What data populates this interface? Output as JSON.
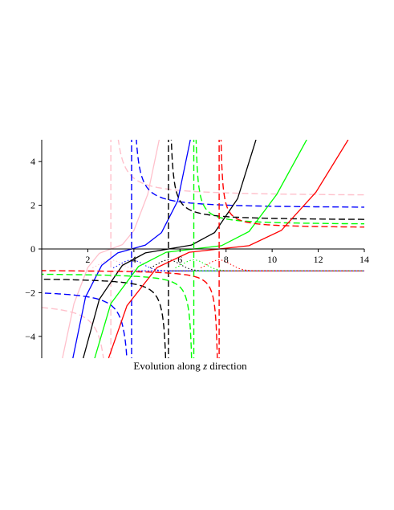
{
  "chart_data": {
    "type": "line",
    "title": "",
    "xlabel_prefix": "Evolution along ",
    "xlabel_var": "z",
    "xlabel_suffix": " direction",
    "xlim": [
      0,
      14
    ],
    "ylim": [
      -5,
      5
    ],
    "xticks": [
      2,
      4,
      6,
      8,
      10,
      12,
      14
    ],
    "yticks": [
      -4,
      -2,
      0,
      2,
      4
    ],
    "xtick_labels": [
      "2",
      "4",
      "6",
      "8",
      "10",
      "12",
      "14"
    ],
    "ytick_labels": [
      "−4",
      "−2",
      "0",
      "2",
      "4"
    ],
    "grid": false,
    "legend": "none",
    "series": [
      {
        "color": "#ffc0cb",
        "x0": 3.0,
        "amp": 2.4,
        "solid": [
          [
            0.9,
            -5.0
          ],
          [
            1.4,
            -2.5
          ],
          [
            2.0,
            -0.85
          ],
          [
            2.5,
            -0.2
          ],
          [
            3.0,
            0.0
          ],
          [
            3.5,
            0.2
          ],
          [
            4.0,
            0.85
          ],
          [
            4.6,
            2.5
          ],
          [
            5.1,
            5.0
          ]
        ]
      },
      {
        "color": "#0000ff",
        "x0": 3.9,
        "amp": 1.85,
        "solid": [
          [
            1.35,
            -5.0
          ],
          [
            1.9,
            -2.2
          ],
          [
            2.6,
            -0.75
          ],
          [
            3.3,
            -0.18
          ],
          [
            3.9,
            0.0
          ],
          [
            4.5,
            0.18
          ],
          [
            5.2,
            0.75
          ],
          [
            5.9,
            2.2
          ],
          [
            6.45,
            5.0
          ]
        ]
      },
      {
        "color": "#000000",
        "x0": 5.5,
        "amp": 1.3,
        "solid": [
          [
            1.8,
            -5.0
          ],
          [
            2.5,
            -2.3
          ],
          [
            3.5,
            -0.75
          ],
          [
            4.5,
            -0.18
          ],
          [
            5.5,
            0.0
          ],
          [
            6.5,
            0.18
          ],
          [
            7.5,
            0.75
          ],
          [
            8.5,
            2.3
          ],
          [
            9.3,
            5.0
          ]
        ]
      },
      {
        "color": "#00ff00",
        "x0": 6.6,
        "amp": 1.1,
        "solid": [
          [
            2.3,
            -5.0
          ],
          [
            3.0,
            -2.5
          ],
          [
            4.2,
            -0.8
          ],
          [
            5.4,
            -0.15
          ],
          [
            6.6,
            0.0
          ],
          [
            7.8,
            0.15
          ],
          [
            9.0,
            0.8
          ],
          [
            10.2,
            2.5
          ],
          [
            11.5,
            5.0
          ]
        ]
      },
      {
        "color": "#ff0000",
        "x0": 7.7,
        "amp": 0.95,
        "solid": [
          [
            2.9,
            -5.0
          ],
          [
            3.7,
            -2.6
          ],
          [
            5.0,
            -0.85
          ],
          [
            6.4,
            -0.15
          ],
          [
            7.7,
            0.0
          ],
          [
            9.0,
            0.15
          ],
          [
            10.4,
            0.85
          ],
          [
            11.9,
            2.6
          ],
          [
            13.3,
            5.0
          ]
        ]
      }
    ],
    "constant_level": -1.0
  }
}
